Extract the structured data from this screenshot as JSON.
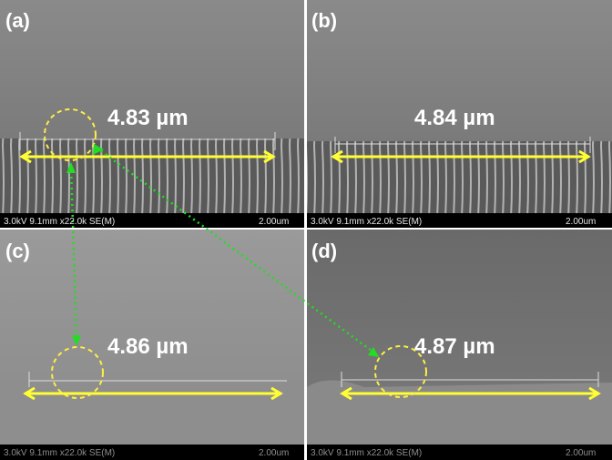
{
  "panels": [
    {
      "label": "(a)",
      "thickness": "4.83 µm",
      "info": "3.0kV 9.1mm x22.0k SE(M)",
      "scale": "2.00um"
    },
    {
      "label": "(b)",
      "thickness": "4.84 µm",
      "info": "3.0kV 9.1mm x22.0k SE(M)",
      "scale": "2.00um"
    },
    {
      "label": "(c)",
      "thickness": "4.86 µm",
      "info": "3.0kV 9.1mm x22.0k SE(M)",
      "scale": "2.00um"
    },
    {
      "label": "(d)",
      "thickness": "4.87 µm",
      "info": "3.0kV 9.1mm x22.0k SE(M)",
      "scale": "2.00um"
    }
  ],
  "colors": {
    "arrow": "#ffff33",
    "link": "#22dd22",
    "circle": "#ffee44"
  }
}
